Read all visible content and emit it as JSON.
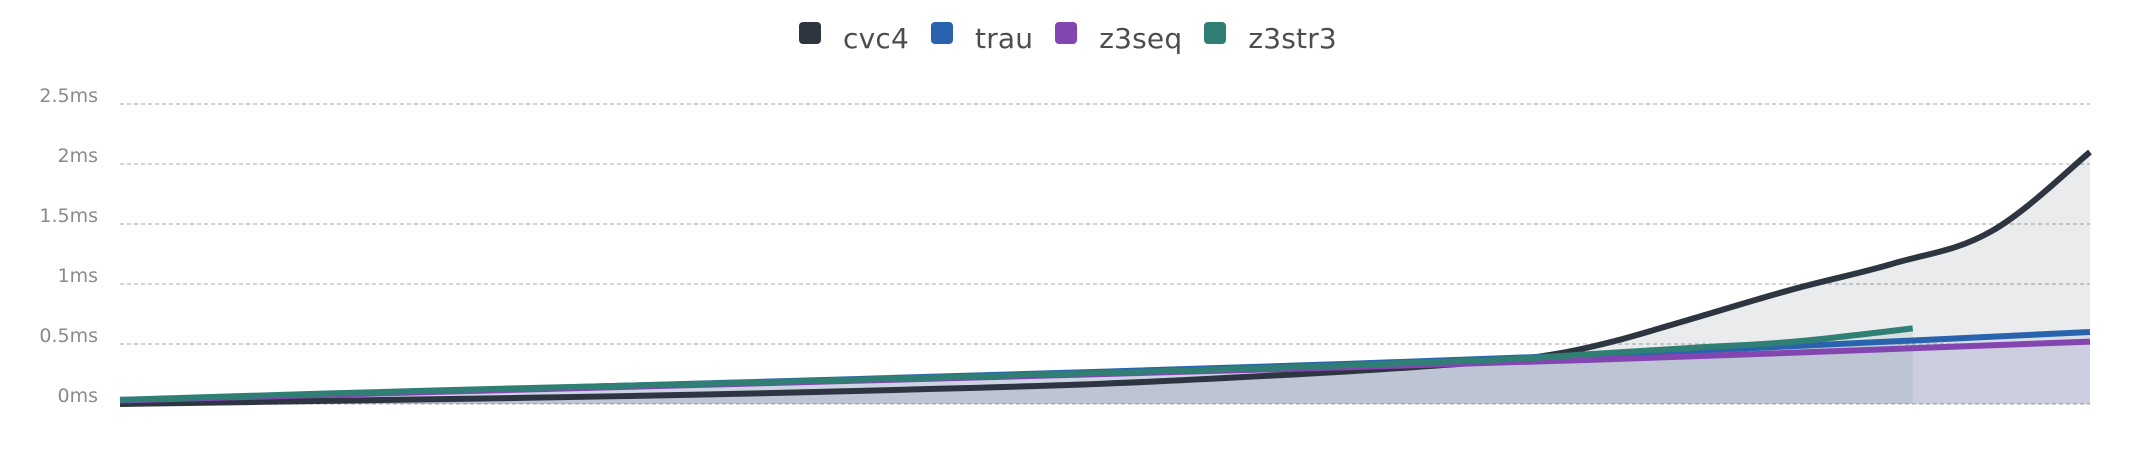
{
  "chart_data": {
    "type": "area",
    "title": "",
    "xlabel": "",
    "ylabel": "",
    "y_unit": "ms",
    "ylim": [
      0,
      2.5
    ],
    "y_ticks": [
      {
        "value": 0,
        "label": "0ms"
      },
      {
        "value": 0.5,
        "label": "0.5ms"
      },
      {
        "value": 1,
        "label": "1ms"
      },
      {
        "value": 1.5,
        "label": "1.5ms"
      },
      {
        "value": 2,
        "label": "2ms"
      },
      {
        "value": 2.5,
        "label": "2.5ms"
      }
    ],
    "x_tick_labels": [],
    "grid": "horizontal dashed",
    "legend_position": "top-center",
    "series": [
      {
        "name": "cvc4",
        "color": "#2d3640",
        "x": [
          0,
          0.1,
          0.2,
          0.3,
          0.4,
          0.5,
          0.6,
          0.65,
          0.7,
          0.73,
          0.76,
          0.8,
          0.85,
          0.9,
          0.95,
          1.0
        ],
        "values": [
          0.0,
          0.025,
          0.05,
          0.08,
          0.12,
          0.17,
          0.25,
          0.3,
          0.36,
          0.42,
          0.53,
          0.72,
          0.96,
          1.17,
          1.44,
          2.1
        ]
      },
      {
        "name": "trau",
        "color": "#2a63ad",
        "x": [
          0,
          0.25,
          0.5,
          0.75,
          1.0
        ],
        "values": [
          0.03,
          0.15,
          0.27,
          0.41,
          0.6
        ]
      },
      {
        "name": "z3seq",
        "color": "#8346b0",
        "x": [
          0,
          0.25,
          0.5,
          0.75,
          1.0
        ],
        "values": [
          0.03,
          0.14,
          0.25,
          0.37,
          0.52
        ]
      },
      {
        "name": "z3str3",
        "color": "#2f7f74",
        "x": [
          0,
          0.1,
          0.2,
          0.3,
          0.4,
          0.5,
          0.6,
          0.7,
          0.75,
          0.8,
          0.85,
          0.91
        ],
        "values": [
          0.035,
          0.085,
          0.13,
          0.17,
          0.215,
          0.26,
          0.31,
          0.37,
          0.42,
          0.47,
          0.52,
          0.63
        ]
      }
    ]
  }
}
